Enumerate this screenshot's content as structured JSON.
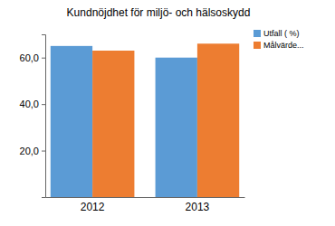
{
  "chart_data": {
    "type": "bar",
    "title": "Kundnöjdhet för miljö- och hälsoskydd",
    "categories": [
      "2012",
      "2013"
    ],
    "series": [
      {
        "name": "Utfall ( %)",
        "color": "#5b9bd5",
        "values": [
          65,
          60
        ]
      },
      {
        "name": "Målvärde...",
        "color": "#ed7d31",
        "values": [
          63,
          66
        ]
      }
    ],
    "ylim": [
      0,
      70
    ],
    "yticks": [
      {
        "value": 20,
        "label": "20,0"
      },
      {
        "value": 40,
        "label": "40,0"
      },
      {
        "value": 60,
        "label": "60,0"
      }
    ],
    "grid": false,
    "legend": "top-right"
  }
}
